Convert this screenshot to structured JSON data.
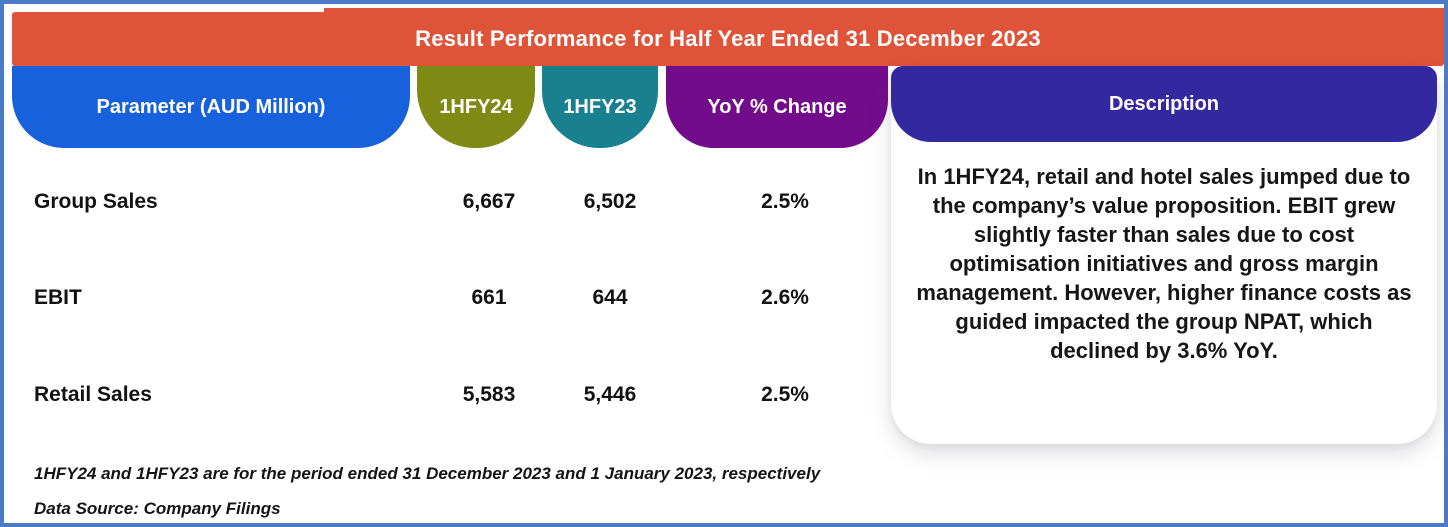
{
  "title": "Result Performance for Half Year Ended 31 December 2023",
  "colors": {
    "banner": "#DF5339",
    "parameter_header": "#1761DC",
    "hfy24_header": "#7E8A13",
    "hfy23_header": "#18808E",
    "yoy_header": "#720C8B",
    "description_header": "#3328A0",
    "frame_border": "#4A7BC4",
    "text": "#121212"
  },
  "columns": [
    {
      "label": "Parameter (AUD Million)",
      "color": "#1761DC"
    },
    {
      "label": "1HFY24",
      "color": "#7E8A13"
    },
    {
      "label": "1HFY23",
      "color": "#18808E"
    },
    {
      "label": "YoY % Change",
      "color": "#720C8B"
    },
    {
      "label": "Description",
      "color": "#3328A0"
    }
  ],
  "rows": [
    {
      "parameter": "Group Sales",
      "hfy24": "6,667",
      "hfy23": "6,502",
      "yoy": "2.5%"
    },
    {
      "parameter": "EBIT",
      "hfy24": "661",
      "hfy23": "644",
      "yoy": "2.6%"
    },
    {
      "parameter": "Retail Sales",
      "hfy24": "5,583",
      "hfy23": "5,446",
      "yoy": "2.5%"
    }
  ],
  "description": "In 1HFY24, retail and hotel sales jumped due to the company’s value proposition. EBIT grew slightly faster than sales due to cost optimisation initiatives and gross margin management. However, higher finance costs as guided impacted the group NPAT, which declined by 3.6% YoY.",
  "footnotes": {
    "line1": "1HFY24 and 1HFY23 are for the period ended 31 December 2023 and 1 January 2023, respectively",
    "line2": "Data Source: Company Filings"
  },
  "chart_data": {
    "type": "table",
    "title": "Result Performance for Half Year Ended 31 December 2023",
    "columns": [
      "Parameter (AUD Million)",
      "1HFY24",
      "1HFY23",
      "YoY % Change"
    ],
    "rows": [
      [
        "Group Sales",
        6667,
        6502,
        "2.5%"
      ],
      [
        "EBIT",
        661,
        644,
        "2.6%"
      ],
      [
        "Retail Sales",
        5583,
        5446,
        "2.5%"
      ]
    ],
    "annotation": "In 1HFY24, retail and hotel sales jumped due to the company’s value proposition. EBIT grew slightly faster than sales due to cost optimisation initiatives and gross margin management. However, higher finance costs as guided impacted the group NPAT, which declined by 3.6% YoY.",
    "footnotes": [
      "1HFY24 and 1HFY23 are for the period ended 31 December 2023 and 1 January 2023, respectively",
      "Data Source: Company Filings"
    ]
  }
}
